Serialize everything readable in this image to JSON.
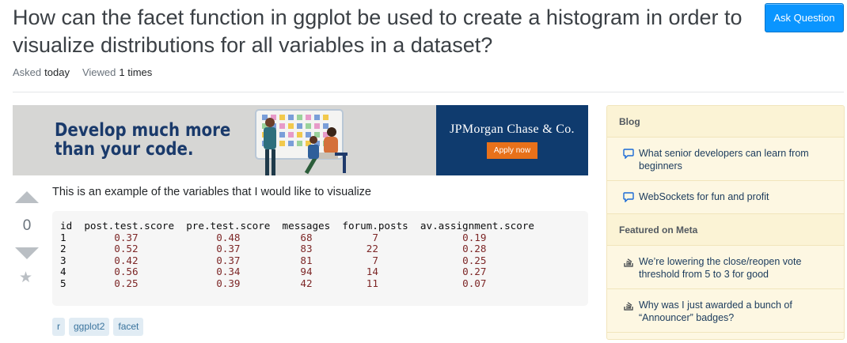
{
  "question": {
    "title": "How can the facet function in ggplot be used to create a histogram in order to visualize distributions for all variables in a dataset?",
    "ask_button": "Ask Question",
    "asked_label": "Asked",
    "asked_value": "today",
    "viewed_label": "Viewed",
    "viewed_value": "1 times"
  },
  "ad": {
    "headline_line1": "Develop much more",
    "headline_line2": "than your code.",
    "brand": "JPMorgan Chase & Co.",
    "cta": "Apply now"
  },
  "post": {
    "vote_count": "0",
    "body": "This is an example of the variables that I would like to visualize",
    "code_header": "id  post.test.score  pre.test.score  messages  forum.posts  av.assignment.score",
    "code_rows": [
      [
        "1",
        "0.37",
        "0.48",
        "68",
        "7",
        "0.19"
      ],
      [
        "2",
        "0.52",
        "0.37",
        "83",
        "22",
        "0.28"
      ],
      [
        "3",
        "0.42",
        "0.37",
        "81",
        "7",
        "0.25"
      ],
      [
        "4",
        "0.56",
        "0.34",
        "94",
        "14",
        "0.27"
      ],
      [
        "5",
        "0.25",
        "0.39",
        "42",
        "11",
        "0.07"
      ]
    ],
    "tags": [
      "r",
      "ggplot2",
      "facet"
    ]
  },
  "sidebar": {
    "blog_heading": "Blog",
    "blog_items": [
      {
        "icon": "speech-bubble-icon",
        "text": "What senior developers can learn from beginners"
      },
      {
        "icon": "speech-bubble-icon",
        "text": "WebSockets for fun and profit"
      }
    ],
    "meta_heading": "Featured on Meta",
    "meta_items": [
      {
        "icon": "stack-exchange-icon",
        "text": "We’re lowering the close/reopen vote threshold from 5 to 3 for good"
      },
      {
        "icon": "stack-exchange-icon",
        "text": "Why was I just awarded a bunch of “Announcer” badges?"
      }
    ]
  },
  "colors": {
    "accent": "#0a95ff",
    "brand_blue": "#0f3b6e",
    "cta_orange": "#e8711a",
    "sidebar_bg": "#fdf7e2",
    "tag_bg": "#e1ecf4"
  }
}
